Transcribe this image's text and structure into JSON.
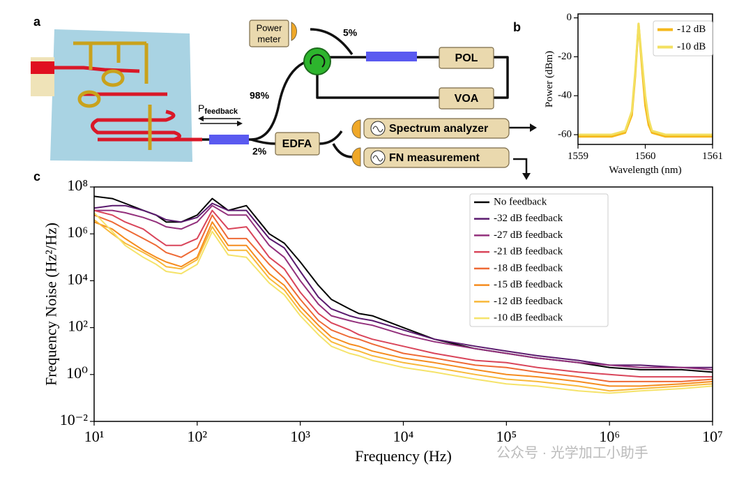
{
  "diagram": {
    "panel_labels": [
      "a",
      "b",
      "c"
    ],
    "power_meter": [
      "Power",
      "meter"
    ],
    "split_5": "5%",
    "split_98": "98%",
    "split_2": "2%",
    "pol": "POL",
    "voa": "VOA",
    "edfa": "EDFA",
    "spectrum_analyzer": "Spectrum analyzer",
    "fn_measurement": "FN measurement",
    "p_feedback": {
      "main": "P",
      "sub": "feedback"
    },
    "watermark": "公众号 · 光学加工小助手"
  },
  "chart_data": [
    {
      "type": "line",
      "xlabel": "Wavelength (nm)",
      "ylabel": "Power (dBm)",
      "x": [
        1559,
        1559.5,
        1559.7,
        1559.8,
        1559.85,
        1559.9,
        1559.95,
        1560,
        1560.05,
        1560.1,
        1560.3,
        1560.5,
        1561
      ],
      "series": [
        {
          "name": "-12 dB",
          "color": "#f5b81c",
          "values": [
            -61,
            -61,
            -59,
            -50,
            -30,
            -3,
            -25,
            -45,
            -55,
            -59,
            -61,
            -61,
            -61
          ]
        },
        {
          "name": "-10 dB",
          "color": "#f3e060",
          "values": [
            -60,
            -60,
            -58,
            -48,
            -28,
            -3,
            -22,
            -40,
            -52,
            -58,
            -60,
            -60,
            -60
          ]
        }
      ],
      "xlim": [
        1559,
        1561
      ],
      "xticks": [
        1559,
        1560,
        1561
      ],
      "ylim": [
        -65,
        2
      ],
      "yticks": [
        -60,
        -40,
        -20,
        0
      ],
      "legend": "upper right"
    },
    {
      "type": "line",
      "xlabel": "Frequency (Hz)",
      "ylabel": "Frequency Noise (Hz²/Hz)",
      "xscale": "log",
      "yscale": "log",
      "x": [
        10,
        15,
        20,
        30,
        40,
        50,
        70,
        100,
        140,
        200,
        300,
        500,
        700,
        1000,
        1500,
        2000,
        3000,
        3700,
        5000,
        10000,
        20000,
        50000,
        100000,
        200000,
        500000,
        1000000,
        2000000,
        5000000,
        10000000
      ],
      "series": [
        {
          "name": "No feedback",
          "color": "#000000",
          "values": [
            40000000.0,
            32000000.0,
            20000000.0,
            10000000.0,
            6300000.0,
            3200000.0,
            3200000.0,
            6300000.0,
            32000000.0,
            10000000.0,
            16000000.0,
            1000000.0,
            400000.0,
            63000.0,
            6300.0,
            1600.0,
            630,
            400,
            320,
            100,
            32,
            12.6,
            8,
            5,
            3.2,
            2,
            1.6,
            1.6,
            1.26
          ]
        },
        {
          "name": "-32 dB feedback",
          "color": "#5a1a6e",
          "values": [
            12600000.0,
            16000000.0,
            16000000.0,
            10000000.0,
            6300000.0,
            4000000.0,
            3200000.0,
            5000000.0,
            20000000.0,
            10000000.0,
            10000000.0,
            630000.0,
            250000.0,
            25000.0,
            2000.0,
            630,
            320,
            250,
            200,
            80,
            32,
            16,
            10,
            6.3,
            4,
            2.5,
            2.5,
            2,
            2
          ]
        },
        {
          "name": "-27 dB feedback",
          "color": "#93307c",
          "values": [
            10000000.0,
            10000000.0,
            8000000.0,
            5000000.0,
            3200000.0,
            2000000.0,
            1600000.0,
            3200000.0,
            16000000.0,
            6300000.0,
            6300000.0,
            320000.0,
            100000.0,
            10000.0,
            1000.0,
            320,
            200,
            160,
            126,
            50,
            25,
            12.6,
            8,
            5,
            3.2,
            2.5,
            2,
            2,
            1.6
          ]
        },
        {
          "name": "-21 dB feedback",
          "color": "#d9455a",
          "values": [
            10000000.0,
            6300000.0,
            3200000.0,
            1600000.0,
            630000.0,
            320000.0,
            320000.0,
            630000.0,
            10000000.0,
            1600000.0,
            2000000.0,
            100000.0,
            32000.0,
            3200.0,
            400,
            160,
            80,
            50,
            32,
            16,
            8,
            4,
            3.2,
            2,
            1.26,
            1,
            0.8,
            0.8,
            0.8
          ]
        },
        {
          "name": "-18 dB feedback",
          "color": "#ee6a35",
          "values": [
            6300000.0,
            3200000.0,
            1600000.0,
            630000.0,
            320000.0,
            160000.0,
            100000.0,
            250000.0,
            6300000.0,
            630000.0,
            630000.0,
            50000.0,
            12600.0,
            1600.0,
            200,
            80,
            40,
            32,
            20,
            8,
            5,
            2.5,
            2,
            1.26,
            0.8,
            0.5,
            0.5,
            0.5,
            0.63
          ]
        },
        {
          "name": "-15 dB feedback",
          "color": "#f58c1f",
          "values": [
            3200000.0,
            1600000.0,
            630000.0,
            200000.0,
            100000.0,
            63000.0,
            40000.0,
            100000.0,
            3200000.0,
            320000.0,
            320000.0,
            20000.0,
            6300.0,
            800,
            126,
            40,
            20,
            16,
            10,
            5,
            3.2,
            1.6,
            1,
            0.8,
            0.5,
            0.32,
            0.32,
            0.4,
            0.5
          ]
        },
        {
          "name": "-12 dB feedback",
          "color": "#f8b83a",
          "values": [
            4000000.0,
            1000000.0,
            400000.0,
            160000.0,
            80000.0,
            40000.0,
            32000.0,
            80000.0,
            2000000.0,
            200000.0,
            200000.0,
            12600.0,
            4000.0,
            500,
            80,
            25,
            12.6,
            10,
            6.3,
            3.2,
            2,
            1,
            0.63,
            0.5,
            0.32,
            0.2,
            0.25,
            0.32,
            0.4
          ]
        },
        {
          "name": "-10 dB feedback",
          "color": "#f5e36a",
          "values": [
            8000000.0,
            1260000.0,
            320000.0,
            100000.0,
            50000.0,
            25000.0,
            20000.0,
            50000.0,
            1260000.0,
            126000.0,
            100000.0,
            8000.0,
            2500.0,
            320,
            50,
            16,
            8,
            6.3,
            4,
            2,
            1.26,
            0.63,
            0.4,
            0.32,
            0.2,
            0.16,
            0.2,
            0.25,
            0.32
          ]
        }
      ],
      "xlim": [
        10,
        10000000
      ],
      "xticks": [
        {
          "value": 10,
          "label": "10¹"
        },
        {
          "value": 100,
          "label": "10²"
        },
        {
          "value": 1000,
          "label": "10³"
        },
        {
          "value": 10000,
          "label": "10⁴"
        },
        {
          "value": 100000,
          "label": "10⁵"
        },
        {
          "value": 1000000,
          "label": "10⁶"
        },
        {
          "value": 10000000,
          "label": "10⁷"
        }
      ],
      "ylim": [
        0.01,
        100000000
      ],
      "yticks": [
        {
          "value": 0.01,
          "label": "10⁻²"
        },
        {
          "value": 1,
          "label": "10⁰"
        },
        {
          "value": 100,
          "label": "10²"
        },
        {
          "value": 10000,
          "label": "10⁴"
        },
        {
          "value": 1000000,
          "label": "10⁶"
        },
        {
          "value": 100000000,
          "label": "10⁸"
        }
      ],
      "legend": "upper right"
    }
  ]
}
